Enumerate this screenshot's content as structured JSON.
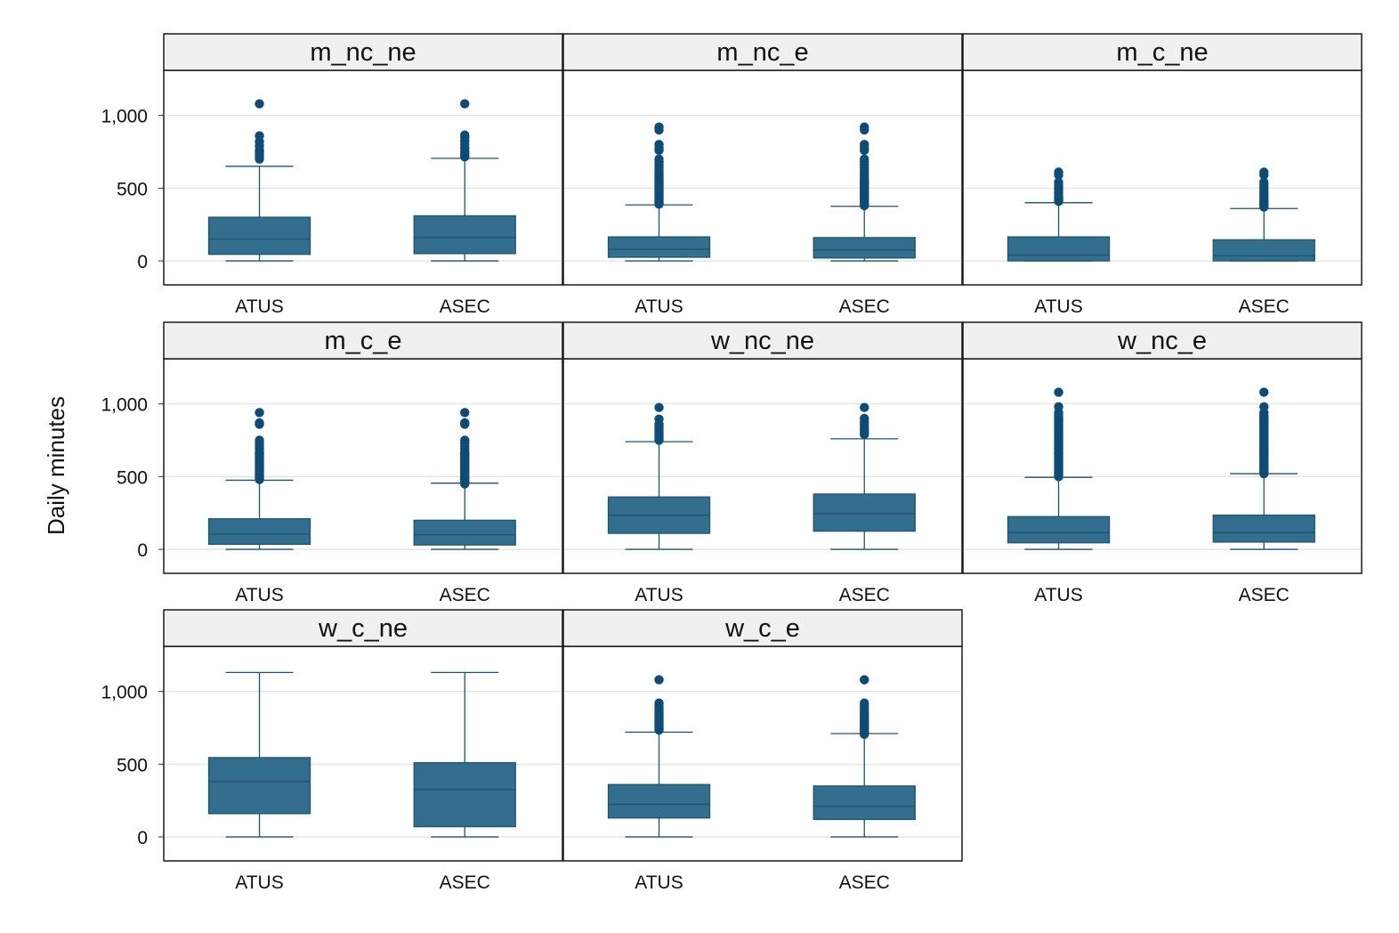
{
  "chart_data": {
    "type": "box",
    "ylabel": "Daily minutes",
    "xlabel": "",
    "ylim": [
      -165,
      1310
    ],
    "y_ticks": [
      0,
      500,
      1000
    ],
    "y_tick_labels": [
      "0",
      "500",
      "1,000"
    ],
    "grid": true,
    "layout": {
      "rows": 3,
      "cols": 3
    },
    "categories": [
      "ATUS",
      "ASEC"
    ],
    "colors": {
      "box_fill": "#336e8e",
      "line": "#1e5470",
      "outlier": "#0f4c75",
      "strip_fill": "#f0f0f0",
      "grid": "#e3e3e3"
    },
    "panels": [
      {
        "title": "m_nc_ne",
        "boxes": [
          {
            "category": "ATUS",
            "min": 0,
            "q1": 45,
            "median": 150,
            "q3": 300,
            "max": 650,
            "outliers": [
              700,
              715,
              730,
              745,
              760,
              790,
              820,
              860,
              1080
            ]
          },
          {
            "category": "ASEC",
            "min": 0,
            "q1": 50,
            "median": 160,
            "q3": 310,
            "max": 705,
            "outliers": [
              715,
              725,
              740,
              755,
              775,
              800,
              825,
              850,
              865,
              1080
            ]
          }
        ]
      },
      {
        "title": "m_nc_e",
        "boxes": [
          {
            "category": "ATUS",
            "min": 0,
            "q1": 25,
            "median": 80,
            "q3": 165,
            "max": 385,
            "outliers": [
              390,
              400,
              410,
              420,
              430,
              440,
              450,
              460,
              470,
              480,
              490,
              500,
              510,
              520,
              530,
              540,
              550,
              560,
              575,
              590,
              605,
              620,
              640,
              660,
              680,
              700,
              760,
              780,
              800,
              900,
              920
            ]
          },
          {
            "category": "ASEC",
            "min": 0,
            "q1": 20,
            "median": 75,
            "q3": 160,
            "max": 375,
            "outliers": [
              380,
              390,
              400,
              410,
              420,
              430,
              440,
              450,
              460,
              470,
              480,
              490,
              500,
              510,
              520,
              530,
              540,
              550,
              560,
              575,
              590,
              605,
              620,
              640,
              660,
              680,
              700,
              760,
              780,
              800,
              900,
              920
            ]
          }
        ]
      },
      {
        "title": "m_c_ne",
        "boxes": [
          {
            "category": "ATUS",
            "min": 0,
            "q1": 0,
            "median": 40,
            "q3": 165,
            "max": 400,
            "outliers": [
              410,
              420,
              430,
              440,
              455,
              470,
              485,
              500,
              520,
              540,
              590,
              610
            ]
          },
          {
            "category": "ASEC",
            "min": 0,
            "q1": 0,
            "median": 35,
            "q3": 145,
            "max": 360,
            "outliers": [
              370,
              380,
              390,
              400,
              410,
              420,
              435,
              450,
              465,
              480,
              500,
              520,
              540,
              590,
              610
            ]
          }
        ]
      },
      {
        "title": "m_c_e",
        "boxes": [
          {
            "category": "ATUS",
            "min": 0,
            "q1": 35,
            "median": 105,
            "q3": 210,
            "max": 475,
            "outliers": [
              480,
              490,
              500,
              510,
              520,
              530,
              540,
              550,
              560,
              570,
              580,
              590,
              600,
              610,
              620,
              630,
              640,
              650,
              660,
              670,
              690,
              710,
              730,
              750,
              860,
              870,
              940
            ]
          },
          {
            "category": "ASEC",
            "min": 0,
            "q1": 30,
            "median": 100,
            "q3": 200,
            "max": 455,
            "outliers": [
              450,
              460,
              470,
              480,
              490,
              500,
              510,
              520,
              530,
              540,
              550,
              560,
              570,
              580,
              590,
              600,
              610,
              620,
              630,
              640,
              650,
              660,
              670,
              690,
              710,
              730,
              750,
              860,
              870,
              940
            ]
          }
        ]
      },
      {
        "title": "w_nc_ne",
        "boxes": [
          {
            "category": "ATUS",
            "min": 0,
            "q1": 110,
            "median": 235,
            "q3": 360,
            "max": 740,
            "outliers": [
              750,
              765,
              780,
              795,
              810,
              830,
              845,
              860,
              895,
              975
            ]
          },
          {
            "category": "ASEC",
            "min": 0,
            "q1": 125,
            "median": 245,
            "q3": 380,
            "max": 760,
            "outliers": [
              790,
              805,
              820,
              835,
              855,
              875,
              900,
              975
            ]
          }
        ]
      },
      {
        "title": "w_nc_e",
        "boxes": [
          {
            "category": "ATUS",
            "min": 0,
            "q1": 45,
            "median": 115,
            "q3": 225,
            "max": 495,
            "outliers": [
              500,
              510,
              520,
              530,
              540,
              550,
              560,
              570,
              580,
              590,
              600,
              610,
              620,
              630,
              640,
              650,
              660,
              670,
              680,
              690,
              700,
              710,
              720,
              730,
              740,
              750,
              760,
              770,
              780,
              790,
              800,
              810,
              820,
              830,
              840,
              850,
              860,
              870,
              880,
              890,
              900,
              910,
              920,
              940,
              980,
              1080
            ]
          },
          {
            "category": "ASEC",
            "min": 0,
            "q1": 50,
            "median": 115,
            "q3": 235,
            "max": 520,
            "outliers": [
              520,
              530,
              540,
              550,
              560,
              570,
              580,
              590,
              600,
              610,
              620,
              630,
              640,
              650,
              660,
              670,
              680,
              690,
              700,
              710,
              720,
              730,
              740,
              750,
              760,
              770,
              780,
              790,
              800,
              810,
              820,
              830,
              840,
              850,
              860,
              870,
              880,
              890,
              900,
              910,
              920,
              940,
              980,
              1080
            ]
          }
        ]
      },
      {
        "title": "w_c_ne",
        "boxes": [
          {
            "category": "ATUS",
            "min": 0,
            "q1": 160,
            "median": 380,
            "q3": 545,
            "max": 1130,
            "outliers": []
          },
          {
            "category": "ASEC",
            "min": 0,
            "q1": 70,
            "median": 325,
            "q3": 510,
            "max": 1130,
            "outliers": []
          }
        ]
      },
      {
        "title": "w_c_e",
        "boxes": [
          {
            "category": "ATUS",
            "min": 0,
            "q1": 130,
            "median": 225,
            "q3": 360,
            "max": 720,
            "outliers": [
              735,
              745,
              755,
              765,
              775,
              785,
              795,
              805,
              815,
              830,
              845,
              860,
              880,
              900,
              920,
              1080
            ]
          },
          {
            "category": "ASEC",
            "min": 0,
            "q1": 120,
            "median": 210,
            "q3": 350,
            "max": 710,
            "outliers": [
              705,
              715,
              725,
              735,
              745,
              755,
              765,
              775,
              785,
              795,
              805,
              815,
              830,
              845,
              860,
              880,
              900,
              920,
              1080
            ]
          }
        ]
      }
    ]
  }
}
